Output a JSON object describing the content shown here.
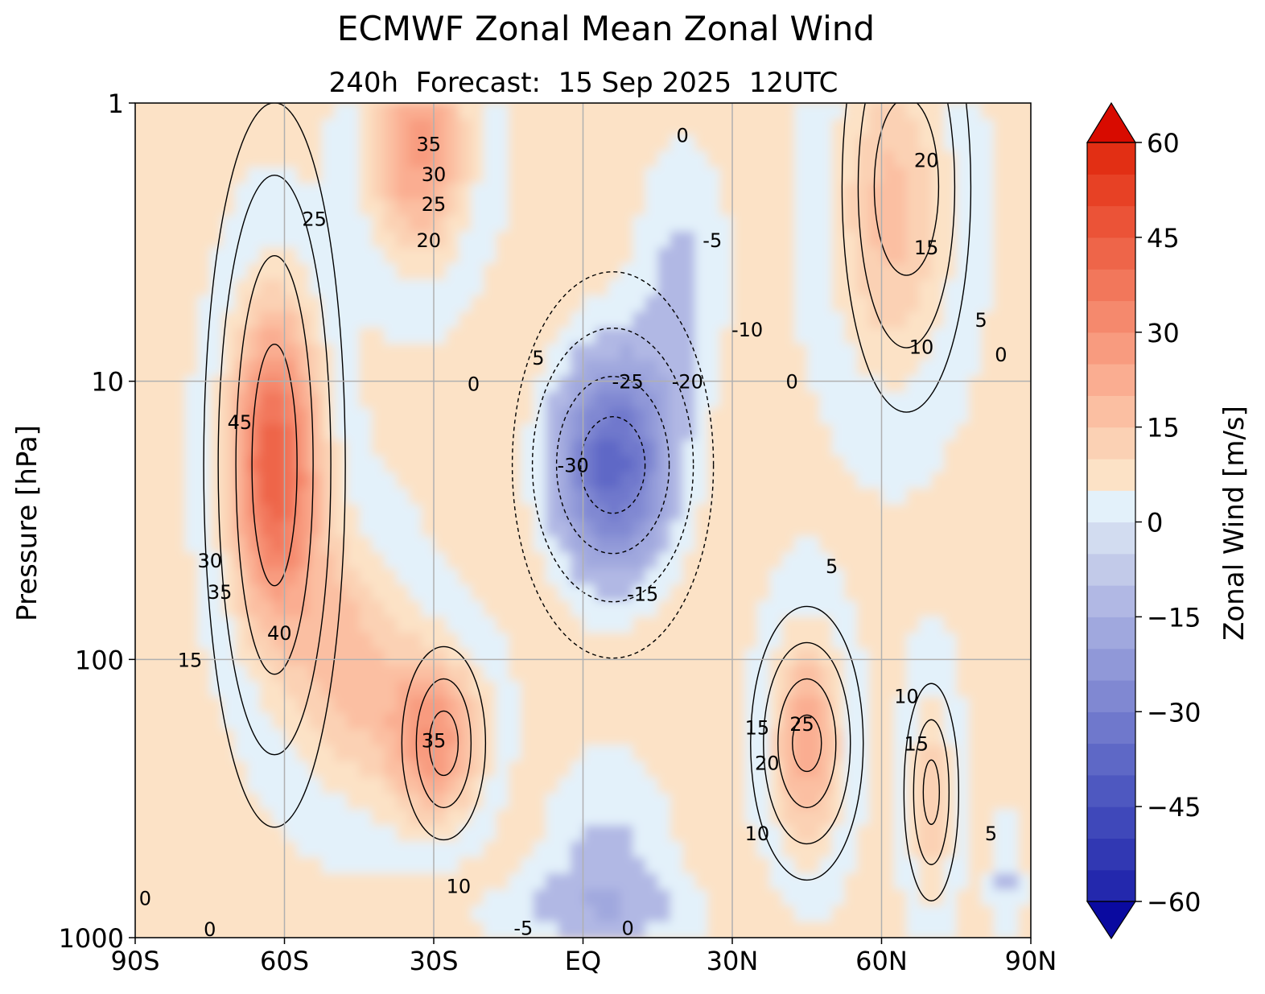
{
  "chart_data": {
    "type": "heatmap",
    "title": "ECMWF Zonal Mean Zonal Wind",
    "subtitle": "240h  Forecast:  15 Sep 2025  12UTC",
    "xlabel": "",
    "ylabel": "Pressure [hPa]",
    "x_ticks": [
      {
        "value": -90,
        "label": "90S"
      },
      {
        "value": -60,
        "label": "60S"
      },
      {
        "value": -30,
        "label": "30S"
      },
      {
        "value": 0,
        "label": "EQ"
      },
      {
        "value": 30,
        "label": "30N"
      },
      {
        "value": 60,
        "label": "60N"
      },
      {
        "value": 90,
        "label": "90N"
      }
    ],
    "y_ticks": [
      {
        "value": 1,
        "label": "1"
      },
      {
        "value": 10,
        "label": "10"
      },
      {
        "value": 100,
        "label": "100"
      },
      {
        "value": 1000,
        "label": "1000"
      }
    ],
    "xlim": [
      -90,
      90
    ],
    "ylim": [
      1000,
      1
    ],
    "y_scale": "log",
    "grid": true,
    "colorbar": {
      "label": "Zonal Wind [m/s]",
      "min": -60,
      "max": 60,
      "step": 5,
      "extend": "both",
      "ticks": [
        {
          "value": 60,
          "label": "60"
        },
        {
          "value": 45,
          "label": "45"
        },
        {
          "value": 30,
          "label": "30"
        },
        {
          "value": 15,
          "label": "15"
        },
        {
          "value": 0,
          "label": "0"
        },
        {
          "value": -15,
          "label": "−15"
        },
        {
          "value": -30,
          "label": "−30"
        },
        {
          "value": -45,
          "label": "−45"
        },
        {
          "value": -60,
          "label": "−60"
        }
      ],
      "colors": [
        "#0a0aa0",
        "#1414a6",
        "#2328ad",
        "#3138b3",
        "#3f48ba",
        "#4e58c0",
        "#5e68c6",
        "#6f78cc",
        "#8088d2",
        "#9098d8",
        "#a0a8de",
        "#b1b8e4",
        "#c2cae9",
        "#d2dcf0",
        "#e3f1fa",
        "#fce2c6",
        "#fbd1b4",
        "#fbbfa2",
        "#faad91",
        "#f89b7f",
        "#f5896d",
        "#f2775b",
        "#ee6549",
        "#eb5337",
        "#e74125",
        "#e22f14",
        "#de1d08",
        "#d80b00"
      ]
    },
    "wind_field": {
      "units": "m/s",
      "latitudes": [
        -90,
        -60,
        -30,
        0,
        30,
        60,
        90
      ],
      "pressure_levels": [
        1,
        10,
        100,
        1000
      ],
      "features": [
        {
          "name": "southern polar night jet",
          "lat": -63,
          "pressure": 20,
          "max": 48
        },
        {
          "name": "southern subtropical jet",
          "lat": -28,
          "pressure": 220,
          "max": 38
        },
        {
          "name": "tropical easterlies",
          "lat": 6,
          "pressure": 20,
          "min": -33
        },
        {
          "name": "northern subtropical jet",
          "lat": 45,
          "pressure": 200,
          "max": 27
        },
        {
          "name": "northern high-latitude jet",
          "lat": 70,
          "pressure": 300,
          "max": 18
        },
        {
          "name": "northern stratospheric westerlies",
          "lat": 65,
          "pressure": 2,
          "max": 22
        }
      ]
    },
    "contour_labels": [
      {
        "text": "35",
        "lat": -31,
        "p": 1.4
      },
      {
        "text": "30",
        "lat": -30,
        "p": 1.8
      },
      {
        "text": "25",
        "lat": -30,
        "p": 2.3
      },
      {
        "text": "20",
        "lat": -31,
        "p": 3.1
      },
      {
        "text": "25",
        "lat": -54,
        "p": 2.6
      },
      {
        "text": "0",
        "lat": 20,
        "p": 1.3
      },
      {
        "text": "20",
        "lat": 69,
        "p": 1.6
      },
      {
        "text": "15",
        "lat": 69,
        "p": 3.3
      },
      {
        "text": "-5",
        "lat": 26,
        "p": 3.1
      },
      {
        "text": "-10",
        "lat": 33,
        "p": 6.5
      },
      {
        "text": "10",
        "lat": 68,
        "p": 7.5
      },
      {
        "text": "5",
        "lat": 80,
        "p": 6.0
      },
      {
        "text": "0",
        "lat": 84,
        "p": 8.0
      },
      {
        "text": "5",
        "lat": -9,
        "p": 8.2
      },
      {
        "text": "0",
        "lat": -22,
        "p": 10.2
      },
      {
        "text": "-25",
        "lat": 9,
        "p": 10.0
      },
      {
        "text": "-20",
        "lat": 21,
        "p": 10.0
      },
      {
        "text": "0",
        "lat": 42,
        "p": 10.0
      },
      {
        "text": "45",
        "lat": -69,
        "p": 14.0
      },
      {
        "text": "-30",
        "lat": -2,
        "p": 20.0
      },
      {
        "text": "30",
        "lat": -75,
        "p": 44.0
      },
      {
        "text": "35",
        "lat": -73,
        "p": 57.0
      },
      {
        "text": "40",
        "lat": -61,
        "p": 80.0
      },
      {
        "text": "5",
        "lat": 50,
        "p": 46.0
      },
      {
        "text": "-15",
        "lat": 12,
        "p": 58.0
      },
      {
        "text": "15",
        "lat": -79,
        "p": 100.0
      },
      {
        "text": "35",
        "lat": -30,
        "p": 195.0
      },
      {
        "text": "25",
        "lat": 44,
        "p": 170.0
      },
      {
        "text": "15",
        "lat": 35,
        "p": 175.0
      },
      {
        "text": "20",
        "lat": 37,
        "p": 235.0
      },
      {
        "text": "10",
        "lat": 35,
        "p": 420.0
      },
      {
        "text": "10",
        "lat": 65,
        "p": 135.0
      },
      {
        "text": "15",
        "lat": 67,
        "p": 200.0
      },
      {
        "text": "5",
        "lat": 82,
        "p": 420.0
      },
      {
        "text": "10",
        "lat": -25,
        "p": 650.0
      },
      {
        "text": "-5",
        "lat": -12,
        "p": 920.0
      },
      {
        "text": "0",
        "lat": 9,
        "p": 920.0
      },
      {
        "text": "0",
        "lat": -88,
        "p": 720.0
      },
      {
        "text": "0",
        "lat": -75,
        "p": 930.0
      }
    ]
  }
}
